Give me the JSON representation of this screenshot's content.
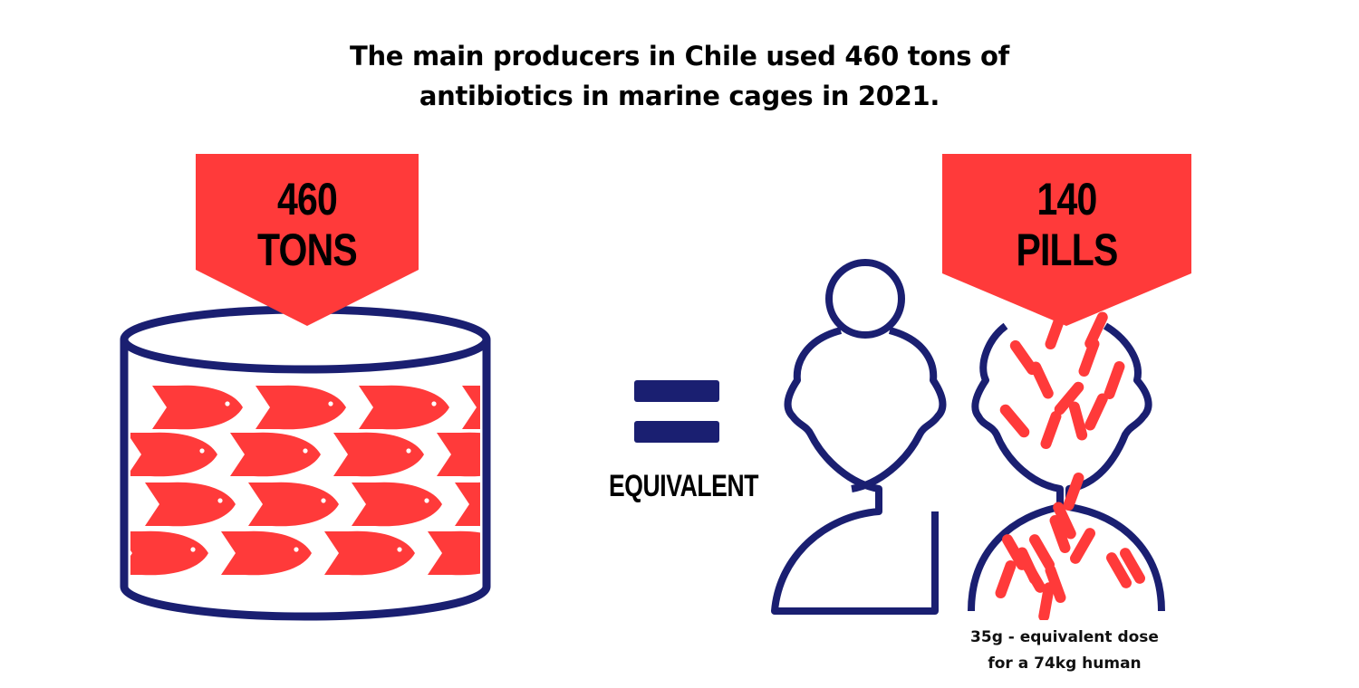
{
  "headline": {
    "line1": "The main producers in Chile used 460 tons of",
    "line2": "antibiotics in marine cages in 2021."
  },
  "left_banner": {
    "line1": "460",
    "line2": "TONS"
  },
  "right_banner": {
    "line1": "140",
    "line2": "PILLS"
  },
  "equivalent_label": "EQUIVALENT",
  "caption": {
    "line1": "35g - equivalent dose",
    "line2": "for a 74kg human"
  },
  "colors": {
    "accent_red": "#ff3a3a",
    "navy": "#1a1f71",
    "text": "#000000"
  },
  "icons": [
    "fish-drum-icon",
    "fish-icon",
    "equals-icon",
    "person-icon",
    "pill-icon"
  ]
}
